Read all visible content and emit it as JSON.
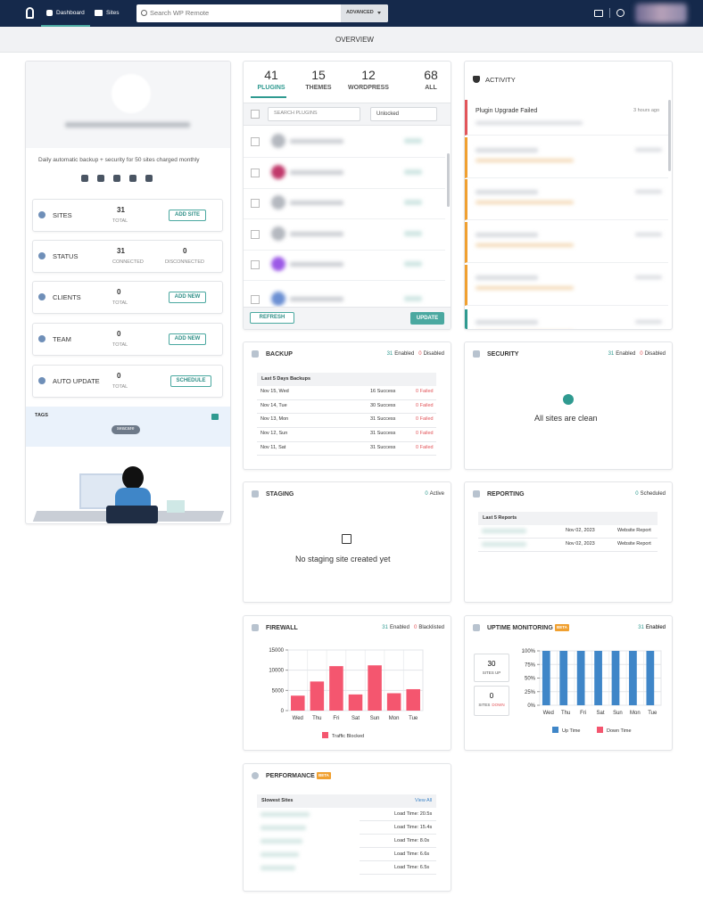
{
  "header": {
    "nav": [
      "Dashboard",
      "Sites"
    ],
    "search_placeholder": "Search WP Remote",
    "advanced": "ADVANCED"
  },
  "page_title": "OVERVIEW",
  "left": {
    "description": "Daily automatic backup + security for 50 sites charged monthly",
    "stats": [
      {
        "label": "SITES",
        "value": 31,
        "sub": "TOTAL",
        "button": "ADD SITE"
      },
      {
        "label": "STATUS",
        "value": 31,
        "sub": "CONNECTED",
        "value2": 0,
        "sub2": "DISCONNECTED"
      },
      {
        "label": "CLIENTS",
        "value": 0,
        "sub": "TOTAL",
        "button": "ADD NEW"
      },
      {
        "label": "TEAM",
        "value": 0,
        "sub": "TOTAL",
        "button": "ADD NEW"
      },
      {
        "label": "AUTO UPDATE",
        "value": 0,
        "sub": "TOTAL",
        "button": "SCHEDULE"
      }
    ],
    "tags_label": "TAGS",
    "tags": [
      "seacare"
    ]
  },
  "plugins": {
    "tabs": [
      {
        "count": 41,
        "label": "PLUGINS"
      },
      {
        "count": 15,
        "label": "THEMES"
      },
      {
        "count": 12,
        "label": "WORDPRESS"
      },
      {
        "count": 68,
        "label": "ALL"
      }
    ],
    "search": "SEARCH PLUGINS",
    "filter": "Unlocked",
    "refresh": "REFRESH",
    "update": "UPDATE"
  },
  "activity": {
    "title": "ACTIVITY",
    "items": [
      {
        "title": "Plugin Upgrade Failed",
        "time": "3 hours ago"
      }
    ]
  },
  "backup": {
    "title": "BACKUP",
    "enabled": 31,
    "enabled_label": "Enabled",
    "disabled": 0,
    "disabled_label": "Disabled",
    "table_title": "Last 5 Days Backups",
    "rows": [
      [
        "Nov 15, Wed",
        "16 Success",
        "0 Failed"
      ],
      [
        "Nov 14, Tue",
        "30 Success",
        "0 Failed"
      ],
      [
        "Nov 13, Mon",
        "31 Success",
        "0 Failed"
      ],
      [
        "Nov 12, Sun",
        "31 Success",
        "0 Failed"
      ],
      [
        "Nov 11, Sat",
        "31 Success",
        "0 Failed"
      ]
    ]
  },
  "security": {
    "title": "SECURITY",
    "enabled": 31,
    "enabled_label": "Enabled",
    "disabled": 0,
    "disabled_label": "Disabled",
    "message": "All sites are clean"
  },
  "staging": {
    "title": "STAGING",
    "active": 0,
    "active_label": "Active",
    "message": "No staging site created yet"
  },
  "reporting": {
    "title": "REPORTING",
    "scheduled": 0,
    "scheduled_label": "Scheduled",
    "table_title": "Last 5 Reports",
    "rows": [
      [
        "Nov 02, 2023",
        "Website Report"
      ],
      [
        "Nov 02, 2023",
        "Website Report"
      ]
    ]
  },
  "firewall": {
    "title": "FIREWALL",
    "enabled": 31,
    "enabled_label": "Enabled",
    "blacklisted": 0,
    "blacklisted_label": "Blacklisted"
  },
  "uptime": {
    "title": "UPTIME MONITORING",
    "badge": "BETA",
    "enabled": 31,
    "enabled_label": "Enabled",
    "up": 30,
    "up_label": "SITES UP",
    "down": 0,
    "down_label": "SITES",
    "down_word": "DOWN"
  },
  "performance": {
    "title": "PERFORMANCE",
    "badge": "BETA",
    "table_title": "Slowest Sites",
    "view_all": "View All",
    "load_times": [
      "Load Time: 20.5s",
      "Load Time: 15.4s",
      "Load Time: 8.0s",
      "Load Time: 6.6s",
      "Load Time: 6.5s"
    ]
  },
  "chart_data": [
    {
      "type": "bar",
      "categories": [
        "Wed",
        "Thu",
        "Fri",
        "Sat",
        "Sun",
        "Mon",
        "Tue"
      ],
      "series": [
        {
          "name": "Traffic Blocked",
          "color": "#f4566f",
          "values": [
            3700,
            7200,
            11000,
            4000,
            11200,
            4300,
            5300
          ]
        }
      ],
      "ylim": [
        0,
        15000
      ],
      "yticks": [
        0,
        5000,
        10000,
        15000
      ],
      "grid": true
    },
    {
      "type": "bar",
      "categories": [
        "Wed",
        "Thu",
        "Fri",
        "Sat",
        "Sun",
        "Mon",
        "Tue"
      ],
      "series": [
        {
          "name": "Up Time",
          "color": "#3f86c8",
          "values": [
            100,
            100,
            100,
            100,
            100,
            100,
            100
          ]
        },
        {
          "name": "Down Time",
          "color": "#f4566f",
          "values": [
            0,
            0,
            0,
            0,
            0,
            0,
            0
          ]
        }
      ],
      "ylim": [
        0,
        100
      ],
      "yticks": [
        {
          "value": 0,
          "label": "0%"
        },
        {
          "value": 25,
          "label": "25%"
        },
        {
          "value": 50,
          "label": "50%"
        },
        {
          "value": 75,
          "label": "75%"
        },
        {
          "value": 100,
          "label": "100%"
        }
      ],
      "grid": true
    }
  ]
}
